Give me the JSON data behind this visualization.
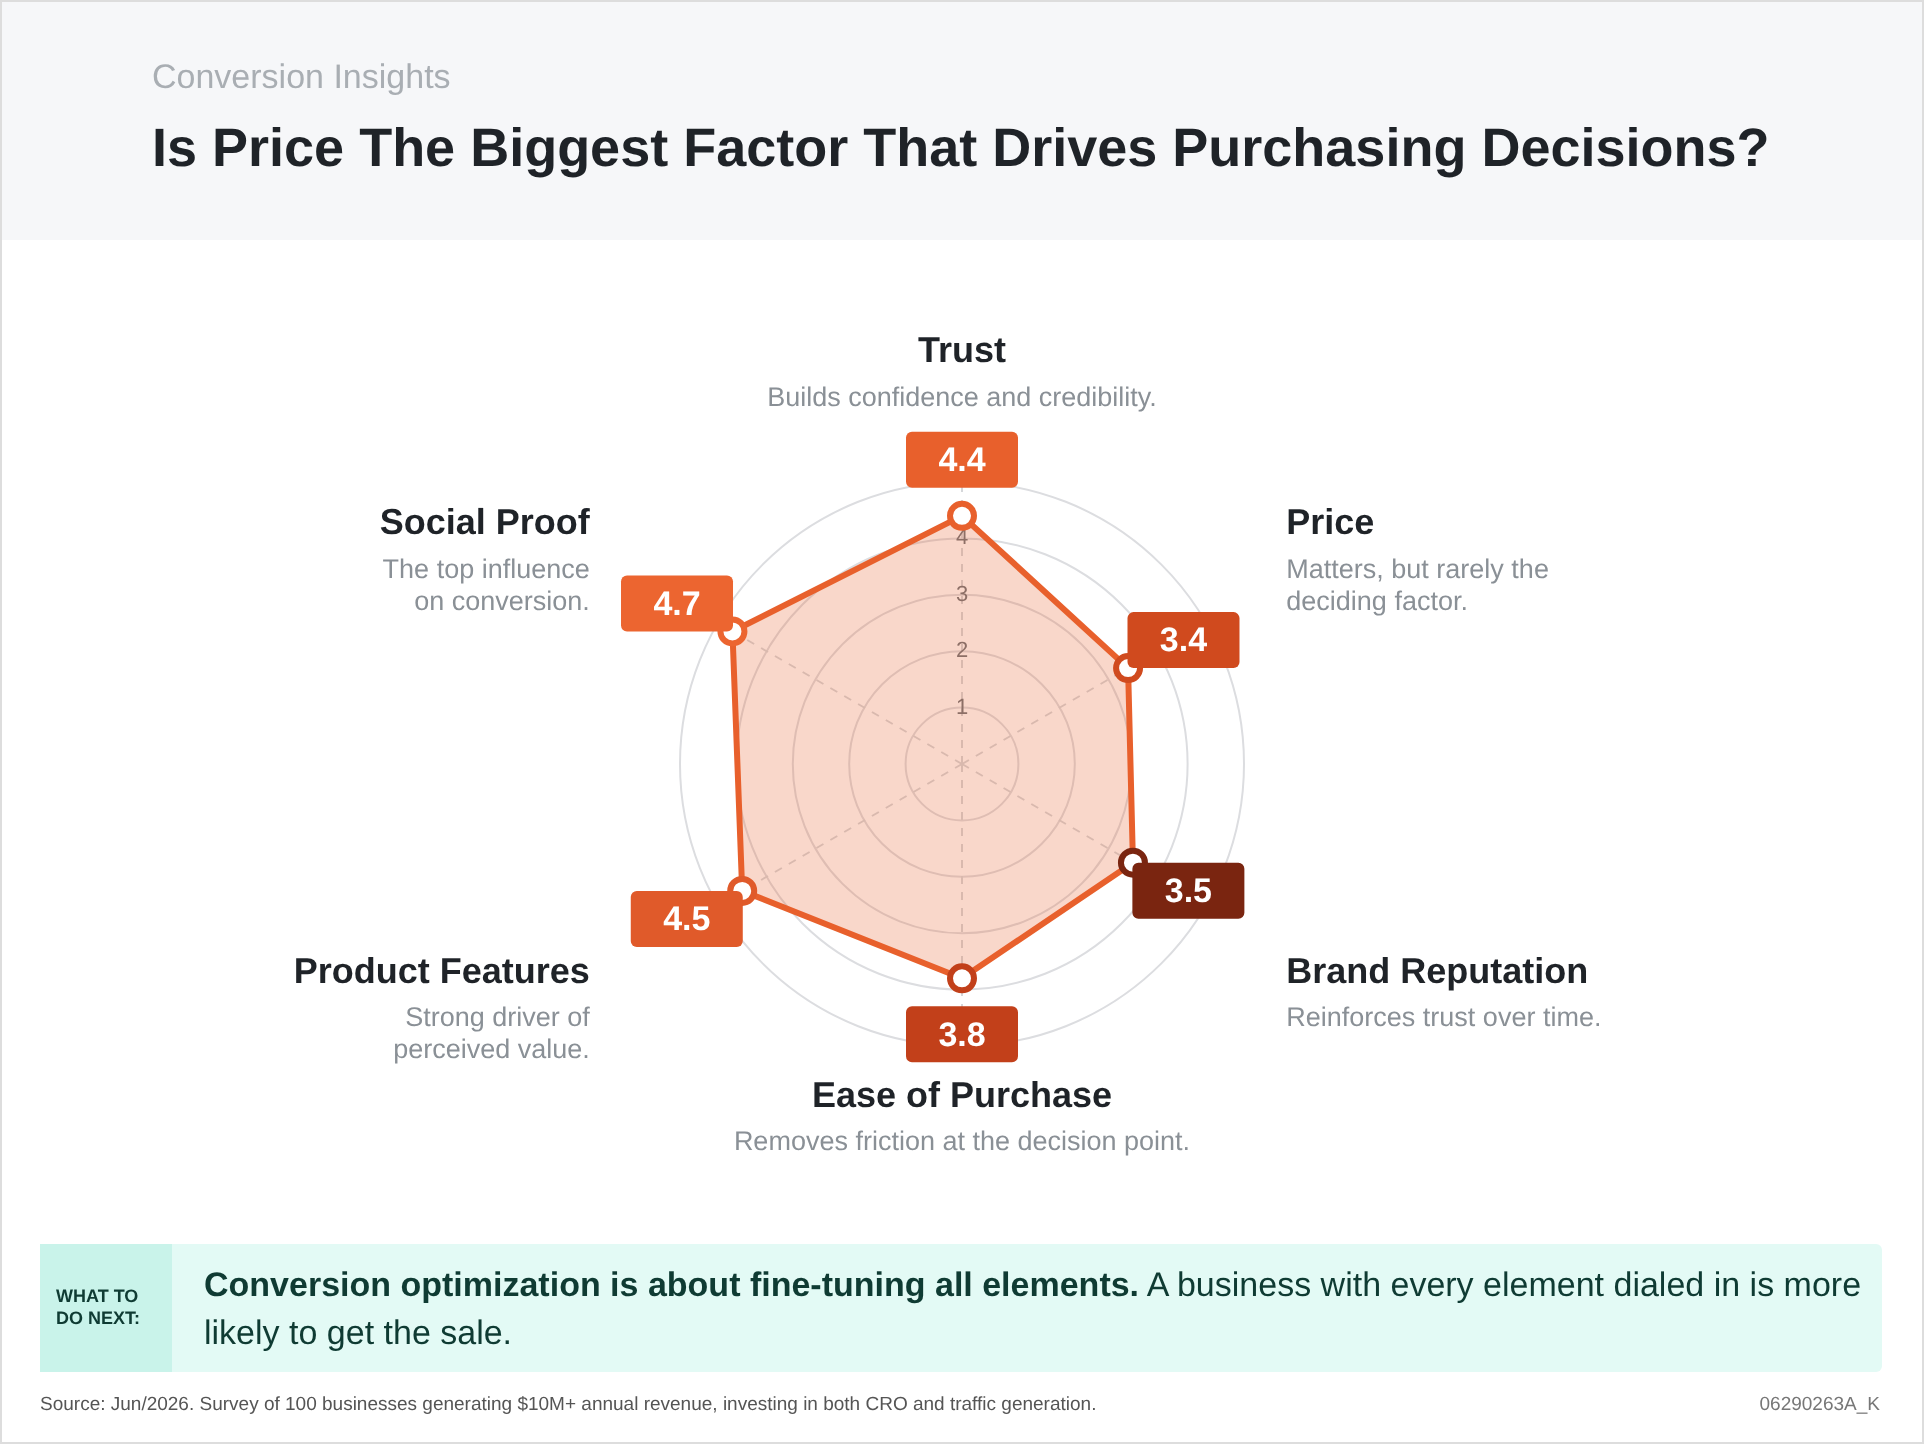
{
  "chart_data": {
    "type": "radar",
    "title": "Is Price The Biggest Factor That Drives Purchasing Decisions?",
    "subtitle": "Conversion Insights",
    "categories": [
      "Trust",
      "Price",
      "Brand Reputation",
      "Ease of Purchase",
      "Product Features",
      "Social Proof"
    ],
    "series": [
      {
        "color": "#e8602c",
        "values": [
          4.4,
          3.4,
          3.5,
          3.8,
          4.5,
          4.7
        ],
        "colors": [
          "#e8602c",
          "#d04a1e",
          "#7a2510",
          "#c2401a",
          "#e05a2a",
          "#ec6530"
        ]
      }
    ],
    "ylim": [
      0,
      5
    ],
    "yticks": [
      1,
      2,
      3,
      4
    ],
    "grid": true,
    "marker": "circle",
    "line_style": "solid",
    "data_labels": true,
    "annotations": [
      {
        "text": "Builds confidence and credibility.",
        "x": "Trust"
      },
      {
        "text": "Matters, but rarely the\ndeciding factor.",
        "x": "Price"
      },
      {
        "text": "Reinforces trust over time.",
        "x": "Brand Reputation"
      },
      {
        "text": "Removes friction at the decision point.",
        "x": "Ease of Purchase"
      },
      {
        "text": "Strong driver of\nperceived value.",
        "x": "Product Features"
      },
      {
        "text": "The top influence\non conversion.",
        "x": "Social Proof"
      },
      "WHAT TO DO NEXT:",
      "Conversion optimization is about fine-tuning all elements.",
      "A business with every element dialed in is more likely to get the sale.",
      "Source: Jun/2026. Survey of 100 businesses generating $10M+ annual revenue, investing in both CRO and traffic generation.",
      "06290263A_K"
    ]
  }
}
